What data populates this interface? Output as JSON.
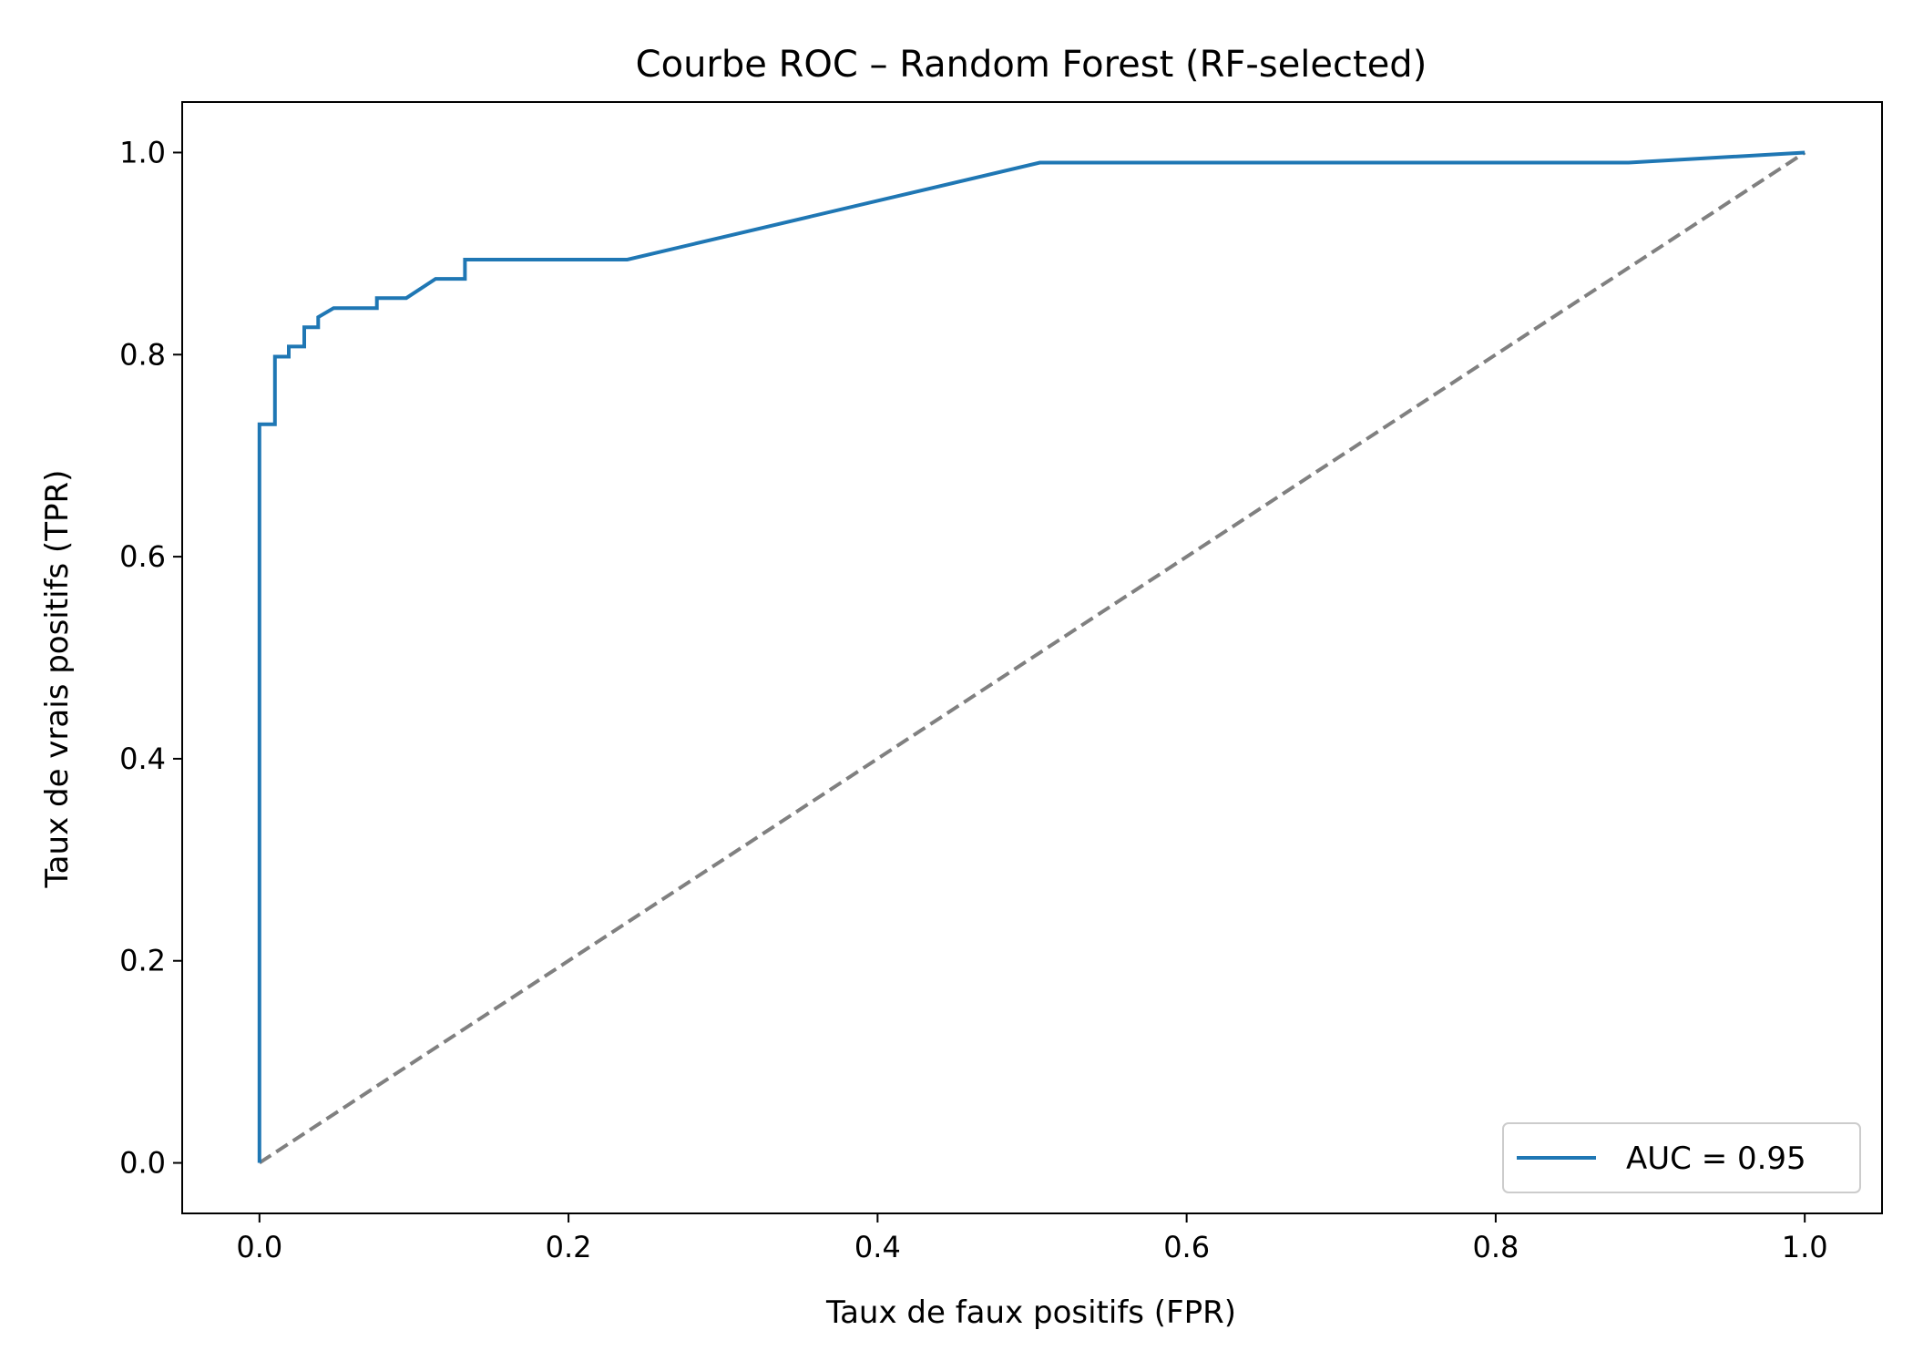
{
  "chart_data": {
    "type": "line",
    "title": "Courbe ROC – Random Forest (RF-selected)",
    "xlabel": "Taux de faux positifs (FPR)",
    "ylabel": "Taux de vrais positifs (TPR)",
    "xlim": [
      -0.05,
      1.05
    ],
    "ylim": [
      -0.05,
      1.05
    ],
    "x_ticks": [
      0.0,
      0.2,
      0.4,
      0.6,
      0.8,
      1.0
    ],
    "y_ticks": [
      0.0,
      0.2,
      0.4,
      0.6,
      0.8,
      1.0
    ],
    "x_tick_labels": [
      "0.0",
      "0.2",
      "0.4",
      "0.6",
      "0.8",
      "1.0"
    ],
    "y_tick_labels": [
      "0.0",
      "0.2",
      "0.4",
      "0.6",
      "0.8",
      "1.0"
    ],
    "grid": false,
    "legend_position": "bottom-right",
    "series": [
      {
        "name": "AUC = 0.95",
        "color": "#1f77b4",
        "style": "solid",
        "points": [
          [
            0.0,
            0.0
          ],
          [
            0.0,
            0.731
          ],
          [
            0.01,
            0.731
          ],
          [
            0.01,
            0.798
          ],
          [
            0.019,
            0.798
          ],
          [
            0.019,
            0.808
          ],
          [
            0.029,
            0.808
          ],
          [
            0.029,
            0.827
          ],
          [
            0.038,
            0.827
          ],
          [
            0.038,
            0.837
          ],
          [
            0.048,
            0.846
          ],
          [
            0.076,
            0.846
          ],
          [
            0.076,
            0.856
          ],
          [
            0.095,
            0.856
          ],
          [
            0.114,
            0.875
          ],
          [
            0.133,
            0.875
          ],
          [
            0.133,
            0.894
          ],
          [
            0.238,
            0.894
          ],
          [
            0.505,
            0.99
          ],
          [
            0.886,
            0.99
          ],
          [
            1.0,
            1.0
          ]
        ]
      },
      {
        "name": "",
        "color": "#808080",
        "style": "dashed",
        "points": [
          [
            0.0,
            0.0
          ],
          [
            1.0,
            1.0
          ]
        ]
      }
    ]
  }
}
